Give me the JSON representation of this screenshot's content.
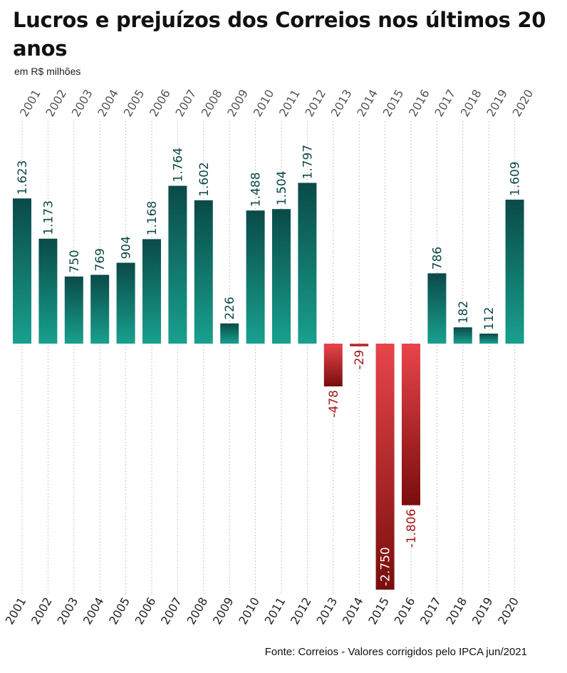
{
  "title": "Lucros e prejuízos dos Correios nos últimos 20 anos",
  "subtitle": "em R$ milhões",
  "source": "Fonte: Correios - Valores corrigidos pelo IPCA jun/2021",
  "colors": {
    "positive_top": "#0a4a48",
    "positive_bottom": "#18a08e",
    "negative_top": "#e8454a",
    "negative_bottom": "#7a0d0d",
    "positive_label": "#0d4a45",
    "negative_label": "#a01818",
    "year_label": "#555555",
    "gridline": "#b5b5b5"
  },
  "chart_data": {
    "type": "bar",
    "title": "Lucros e prejuízos dos Correios nos últimos 20 anos",
    "subtitle": "em R$ milhões",
    "categories": [
      "2001",
      "2002",
      "2003",
      "2004",
      "2005",
      "2006",
      "2007",
      "2008",
      "2009",
      "2010",
      "2011",
      "2012",
      "2013",
      "2014",
      "2015",
      "2016",
      "2017",
      "2018",
      "2019",
      "2020"
    ],
    "values": [
      1623,
      1173,
      750,
      769,
      904,
      1168,
      1764,
      1602,
      226,
      1488,
      1504,
      1797,
      -478,
      -29,
      -2750,
      -1806,
      786,
      182,
      112,
      1609
    ],
    "value_labels": [
      "1.623",
      "1.173",
      "750",
      "769",
      "904",
      "1.168",
      "1.764",
      "1.602",
      "226",
      "1.488",
      "1.504",
      "1.797",
      "-478",
      "-29",
      "-2.750",
      "-1.806",
      "786",
      "182",
      "112",
      "1.609"
    ],
    "ylim": [
      -2750,
      1800
    ],
    "grid": "vertical dotted lines per category",
    "legend": "none"
  }
}
